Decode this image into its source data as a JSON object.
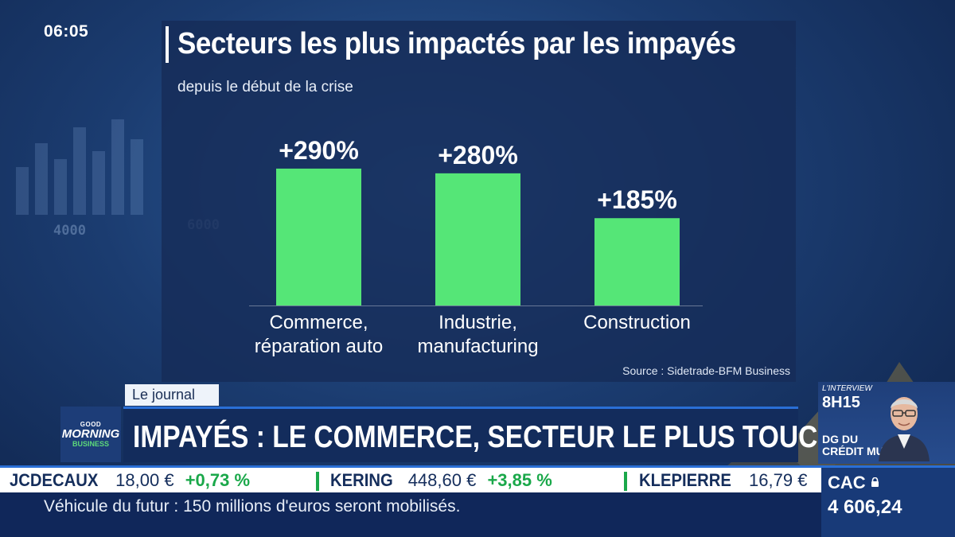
{
  "clock": "06:05",
  "chart_data": {
    "type": "bar",
    "title": "Secteurs les plus impactés par les impayés",
    "subtitle": "depuis le début de la crise",
    "categories": [
      [
        "Commerce,",
        "réparation auto"
      ],
      [
        "Industrie,",
        "manufacturing"
      ],
      [
        "Construction"
      ]
    ],
    "values": [
      290,
      280,
      185
    ],
    "value_labels": [
      "+290%",
      "+280%",
      "+185%"
    ],
    "ylim": [
      0,
      300
    ],
    "bar_color": "#55e677",
    "grid": false,
    "source": "Source : Sidetrade-BFM Business"
  },
  "lower_third": {
    "tag": "Le journal",
    "headline": "IMPAYÉS : LE COMMERCE, SECTEUR LE PLUS TOUCHÉ",
    "logo": {
      "line1": "GOOD",
      "line2": "MORNING",
      "line3": "BUSINESS"
    }
  },
  "interview": {
    "label": "L'INTERVIEW",
    "time": "8H15",
    "role_line1": "DG DU",
    "role_line2": "CRÉDIT MUTUEL"
  },
  "tickers": [
    {
      "name": "JCDECAUX",
      "price": "18,00 €",
      "change": "+0,73 %"
    },
    {
      "name": "KERING",
      "price": "448,60 €",
      "change": "+3,85 %"
    },
    {
      "name": "KLEPIERRE",
      "price": "16,79 €",
      "change": ""
    }
  ],
  "index": {
    "name": "CAC",
    "value": "4 606,24"
  },
  "news": "Véhicule du futur : 150 millions d'euros seront mobilisés.",
  "background_numbers": [
    "4000",
    "6000"
  ],
  "colors": {
    "accent_blue": "#2a6fd6",
    "positive_green": "#1aa84a"
  }
}
